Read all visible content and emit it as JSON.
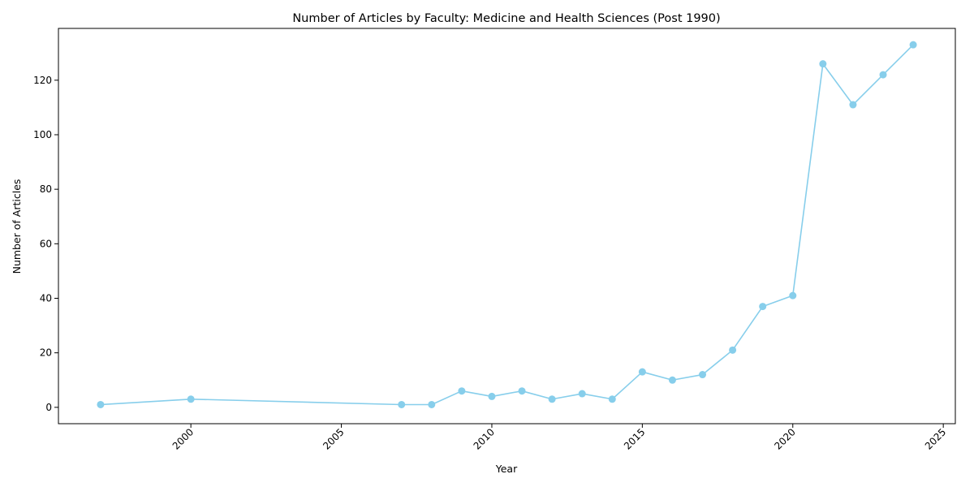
{
  "chart_data": {
    "type": "line",
    "title": "Number of Articles by Faculty: Medicine and Health Sciences (Post 1990)",
    "xlabel": "Year",
    "ylabel": "Number of Articles",
    "xlim": [
      1995.6,
      2025.4
    ],
    "ylim": [
      -6,
      139
    ],
    "xticks": [
      2000,
      2005,
      2010,
      2015,
      2020,
      2025
    ],
    "yticks": [
      0,
      20,
      40,
      60,
      80,
      100,
      120
    ],
    "xtick_rotation": 45,
    "grid": false,
    "legend": false,
    "color": "#87CEEB",
    "marker": "circle",
    "series": [
      {
        "x": [
          1997,
          2000,
          2007,
          2008,
          2009,
          2010,
          2011,
          2012,
          2013,
          2014,
          2015,
          2016,
          2017,
          2018,
          2019,
          2020,
          2021,
          2022,
          2023,
          2024
        ],
        "y": [
          1,
          3,
          1,
          1,
          6,
          4,
          6,
          3,
          5,
          3,
          13,
          10,
          12,
          21,
          37,
          41,
          126,
          111,
          122,
          133
        ]
      }
    ]
  }
}
